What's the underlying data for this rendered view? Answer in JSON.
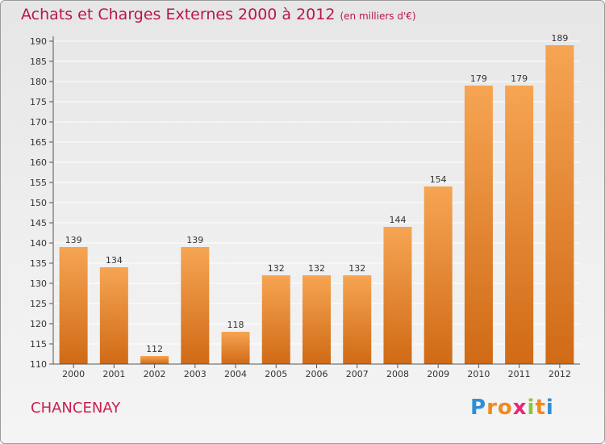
{
  "title": "Achats et Charges Externes 2000 à 2012",
  "subtitle": "(en milliers d'€)",
  "commune": "CHANCENAY",
  "logo": {
    "letters": [
      "P",
      "r",
      "o",
      "x",
      "i",
      "t",
      "i"
    ],
    "colors": [
      "#2e8fd6",
      "#f08a1e",
      "#f08a1e",
      "#e8257a",
      "#8cc63f",
      "#f08a1e",
      "#2e8fd6"
    ]
  },
  "colors": {
    "bar_top": "#f6a553",
    "bar_bottom": "#d06a16",
    "title": "#b8164f"
  },
  "chart_data": {
    "type": "bar",
    "categories": [
      "2000",
      "2001",
      "2002",
      "2003",
      "2004",
      "2005",
      "2006",
      "2007",
      "2008",
      "2009",
      "2010",
      "2011",
      "2012"
    ],
    "values": [
      139,
      134,
      112,
      139,
      118,
      132,
      132,
      132,
      144,
      154,
      179,
      179,
      189
    ],
    "yticks": [
      110,
      115,
      120,
      125,
      130,
      135,
      140,
      145,
      150,
      155,
      160,
      165,
      170,
      175,
      180,
      185,
      190
    ],
    "ylim": [
      110,
      190
    ],
    "grid": true
  }
}
